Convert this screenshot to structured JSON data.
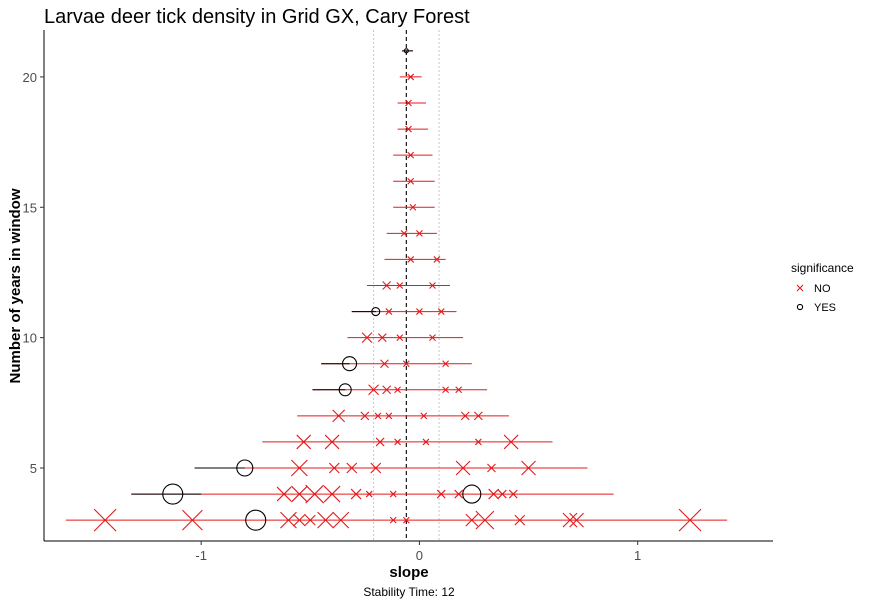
{
  "chart_data": {
    "type": "scatter",
    "title": "Larvae deer tick density in Grid GX, Cary Forest",
    "xlabel": "slope",
    "ylabel": "Number of years in window",
    "caption": "Stability Time: 12",
    "xlim": [
      -1.72,
      1.62
    ],
    "ylim": [
      2.2,
      21.8
    ],
    "x_ticks": [
      -1,
      0,
      1
    ],
    "x_tick_labels": [
      "-1",
      "0",
      "1"
    ],
    "y_ticks": [
      5,
      10,
      15,
      20
    ],
    "y_tick_labels": [
      "5",
      "10",
      "15",
      "20"
    ],
    "reference_line_x": -0.06,
    "significance_band": [
      -0.21,
      0.09
    ],
    "grid": false,
    "legend": {
      "title": "significance",
      "position": "right",
      "entries": [
        {
          "label": "NO",
          "color": "#e41a1c",
          "shape": "x"
        },
        {
          "label": "YES",
          "color": "#000000",
          "shape": "circle"
        }
      ]
    },
    "error_bars": [
      {
        "y": 3,
        "xmin": -1.62,
        "xmax": 1.41,
        "yes_xmin": null,
        "yes_xmax": null
      },
      {
        "y": 4,
        "xmin": -1.32,
        "xmax": 0.89,
        "yes_xmin": -1.32,
        "yes_xmax": -1.0
      },
      {
        "y": 5,
        "xmin": -1.03,
        "xmax": 0.77,
        "yes_xmin": -1.03,
        "yes_xmax": -0.8
      },
      {
        "y": 6,
        "xmin": -0.72,
        "xmax": 0.61,
        "yes_xmin": null,
        "yes_xmax": null
      },
      {
        "y": 7,
        "xmin": -0.56,
        "xmax": 0.41,
        "yes_xmin": null,
        "yes_xmax": null
      },
      {
        "y": 8,
        "xmin": -0.49,
        "xmax": 0.31,
        "yes_xmin": -0.49,
        "yes_xmax": -0.34
      },
      {
        "y": 9,
        "xmin": -0.45,
        "xmax": 0.24,
        "yes_xmin": -0.45,
        "yes_xmax": -0.32
      },
      {
        "y": 10,
        "xmin": -0.33,
        "xmax": 0.2,
        "yes_xmin": null,
        "yes_xmax": null
      },
      {
        "y": 11,
        "xmin": -0.31,
        "xmax": 0.17,
        "yes_xmin": -0.31,
        "yes_xmax": -0.2
      },
      {
        "y": 12,
        "xmin": -0.24,
        "xmax": 0.14,
        "yes_xmin": null,
        "yes_xmax": null
      },
      {
        "y": 13,
        "xmin": -0.16,
        "xmax": 0.12,
        "yes_xmin": null,
        "yes_xmax": null
      },
      {
        "y": 14,
        "xmin": -0.15,
        "xmax": 0.08,
        "yes_xmin": null,
        "yes_xmax": null
      },
      {
        "y": 15,
        "xmin": -0.12,
        "xmax": 0.07,
        "yes_xmin": null,
        "yes_xmax": null
      },
      {
        "y": 16,
        "xmin": -0.12,
        "xmax": 0.07,
        "yes_xmin": null,
        "yes_xmax": null
      },
      {
        "y": 17,
        "xmin": -0.12,
        "xmax": 0.06,
        "yes_xmin": null,
        "yes_xmax": null
      },
      {
        "y": 18,
        "xmin": -0.1,
        "xmax": 0.04,
        "yes_xmin": null,
        "yes_xmax": null
      },
      {
        "y": 19,
        "xmin": -0.1,
        "xmax": 0.03,
        "yes_xmin": null,
        "yes_xmax": null
      },
      {
        "y": 20,
        "xmin": -0.09,
        "xmax": 0.01,
        "yes_xmin": null,
        "yes_xmax": null
      },
      {
        "y": 21,
        "xmin": -0.08,
        "xmax": -0.03,
        "yes_xmin": -0.08,
        "yes_xmax": -0.03
      }
    ],
    "points": [
      {
        "y": 3,
        "x": -1.44,
        "sig": "NO",
        "size": 11
      },
      {
        "y": 3,
        "x": -1.04,
        "sig": "NO",
        "size": 10
      },
      {
        "y": 3,
        "x": -0.75,
        "sig": "YES",
        "size": 10
      },
      {
        "y": 3,
        "x": -0.6,
        "sig": "NO",
        "size": 8
      },
      {
        "y": 3,
        "x": -0.55,
        "sig": "NO",
        "size": 6
      },
      {
        "y": 3,
        "x": -0.5,
        "sig": "NO",
        "size": 5
      },
      {
        "y": 3,
        "x": -0.43,
        "sig": "NO",
        "size": 8
      },
      {
        "y": 3,
        "x": -0.36,
        "sig": "NO",
        "size": 8
      },
      {
        "y": 3,
        "x": -0.12,
        "sig": "NO",
        "size": 3
      },
      {
        "y": 3,
        "x": -0.06,
        "sig": "NO",
        "size": 3
      },
      {
        "y": 3,
        "x": 0.24,
        "sig": "NO",
        "size": 6
      },
      {
        "y": 3,
        "x": 0.3,
        "sig": "NO",
        "size": 9
      },
      {
        "y": 3,
        "x": 0.46,
        "sig": "NO",
        "size": 5
      },
      {
        "y": 3,
        "x": 0.69,
        "sig": "NO",
        "size": 7
      },
      {
        "y": 3,
        "x": 0.72,
        "sig": "NO",
        "size": 7
      },
      {
        "y": 3,
        "x": 1.24,
        "sig": "NO",
        "size": 11
      },
      {
        "y": 4,
        "x": -1.13,
        "sig": "YES",
        "size": 10
      },
      {
        "y": 4,
        "x": -0.62,
        "sig": "NO",
        "size": 7
      },
      {
        "y": 4,
        "x": -0.55,
        "sig": "NO",
        "size": 8
      },
      {
        "y": 4,
        "x": -0.48,
        "sig": "NO",
        "size": 9
      },
      {
        "y": 4,
        "x": -0.4,
        "sig": "NO",
        "size": 8
      },
      {
        "y": 4,
        "x": -0.29,
        "sig": "NO",
        "size": 5
      },
      {
        "y": 4,
        "x": -0.23,
        "sig": "NO",
        "size": 3
      },
      {
        "y": 4,
        "x": -0.12,
        "sig": "NO",
        "size": 3
      },
      {
        "y": 4,
        "x": 0.1,
        "sig": "NO",
        "size": 4
      },
      {
        "y": 4,
        "x": 0.18,
        "sig": "NO",
        "size": 4
      },
      {
        "y": 4,
        "x": 0.24,
        "sig": "YES",
        "size": 9
      },
      {
        "y": 4,
        "x": 0.34,
        "sig": "NO",
        "size": 5
      },
      {
        "y": 4,
        "x": 0.38,
        "sig": "NO",
        "size": 4
      },
      {
        "y": 4,
        "x": 0.43,
        "sig": "NO",
        "size": 4
      },
      {
        "y": 5,
        "x": -0.8,
        "sig": "YES",
        "size": 8
      },
      {
        "y": 5,
        "x": -0.55,
        "sig": "NO",
        "size": 8
      },
      {
        "y": 5,
        "x": -0.39,
        "sig": "NO",
        "size": 5
      },
      {
        "y": 5,
        "x": -0.31,
        "sig": "NO",
        "size": 5
      },
      {
        "y": 5,
        "x": -0.2,
        "sig": "NO",
        "size": 5
      },
      {
        "y": 5,
        "x": 0.2,
        "sig": "NO",
        "size": 7
      },
      {
        "y": 5,
        "x": 0.33,
        "sig": "NO",
        "size": 4
      },
      {
        "y": 5,
        "x": 0.5,
        "sig": "NO",
        "size": 7
      },
      {
        "y": 6,
        "x": -0.53,
        "sig": "NO",
        "size": 7
      },
      {
        "y": 6,
        "x": -0.4,
        "sig": "NO",
        "size": 7
      },
      {
        "y": 6,
        "x": -0.18,
        "sig": "NO",
        "size": 4
      },
      {
        "y": 6,
        "x": -0.1,
        "sig": "NO",
        "size": 3
      },
      {
        "y": 6,
        "x": 0.03,
        "sig": "NO",
        "size": 3
      },
      {
        "y": 6,
        "x": 0.27,
        "sig": "NO",
        "size": 3
      },
      {
        "y": 6,
        "x": 0.42,
        "sig": "NO",
        "size": 7
      },
      {
        "y": 7,
        "x": -0.37,
        "sig": "NO",
        "size": 6
      },
      {
        "y": 7,
        "x": -0.25,
        "sig": "NO",
        "size": 4
      },
      {
        "y": 7,
        "x": -0.19,
        "sig": "NO",
        "size": 3
      },
      {
        "y": 7,
        "x": -0.14,
        "sig": "NO",
        "size": 3
      },
      {
        "y": 7,
        "x": 0.02,
        "sig": "NO",
        "size": 3
      },
      {
        "y": 7,
        "x": 0.21,
        "sig": "NO",
        "size": 4
      },
      {
        "y": 7,
        "x": 0.27,
        "sig": "NO",
        "size": 4
      },
      {
        "y": 8,
        "x": -0.34,
        "sig": "YES",
        "size": 6
      },
      {
        "y": 8,
        "x": -0.21,
        "sig": "NO",
        "size": 5
      },
      {
        "y": 8,
        "x": -0.15,
        "sig": "NO",
        "size": 4
      },
      {
        "y": 8,
        "x": -0.1,
        "sig": "NO",
        "size": 3
      },
      {
        "y": 8,
        "x": 0.12,
        "sig": "NO",
        "size": 3
      },
      {
        "y": 8,
        "x": 0.18,
        "sig": "NO",
        "size": 3
      },
      {
        "y": 9,
        "x": -0.32,
        "sig": "YES",
        "size": 7
      },
      {
        "y": 9,
        "x": -0.16,
        "sig": "NO",
        "size": 4
      },
      {
        "y": 9,
        "x": -0.06,
        "sig": "NO",
        "size": 3
      },
      {
        "y": 9,
        "x": 0.12,
        "sig": "NO",
        "size": 3
      },
      {
        "y": 10,
        "x": -0.24,
        "sig": "NO",
        "size": 5
      },
      {
        "y": 10,
        "x": -0.17,
        "sig": "NO",
        "size": 4
      },
      {
        "y": 10,
        "x": -0.09,
        "sig": "NO",
        "size": 3
      },
      {
        "y": 10,
        "x": 0.06,
        "sig": "NO",
        "size": 3
      },
      {
        "y": 11,
        "x": -0.2,
        "sig": "YES",
        "size": 4
      },
      {
        "y": 11,
        "x": -0.14,
        "sig": "NO",
        "size": 3
      },
      {
        "y": 11,
        "x": 0.0,
        "sig": "NO",
        "size": 3
      },
      {
        "y": 11,
        "x": 0.1,
        "sig": "NO",
        "size": 3
      },
      {
        "y": 12,
        "x": -0.15,
        "sig": "NO",
        "size": 4
      },
      {
        "y": 12,
        "x": -0.09,
        "sig": "NO",
        "size": 3
      },
      {
        "y": 12,
        "x": 0.06,
        "sig": "NO",
        "size": 3
      },
      {
        "y": 13,
        "x": -0.04,
        "sig": "NO",
        "size": 3
      },
      {
        "y": 13,
        "x": 0.08,
        "sig": "NO",
        "size": 3
      },
      {
        "y": 14,
        "x": -0.07,
        "sig": "NO",
        "size": 3
      },
      {
        "y": 14,
        "x": 0.0,
        "sig": "NO",
        "size": 3
      },
      {
        "y": 15,
        "x": -0.03,
        "sig": "NO",
        "size": 3
      },
      {
        "y": 16,
        "x": -0.04,
        "sig": "NO",
        "size": 3
      },
      {
        "y": 17,
        "x": -0.04,
        "sig": "NO",
        "size": 3
      },
      {
        "y": 18,
        "x": -0.05,
        "sig": "NO",
        "size": 3
      },
      {
        "y": 19,
        "x": -0.05,
        "sig": "NO",
        "size": 3
      },
      {
        "y": 20,
        "x": -0.04,
        "sig": "NO",
        "size": 3
      },
      {
        "y": 21,
        "x": -0.06,
        "sig": "YES",
        "size": 2
      }
    ]
  }
}
